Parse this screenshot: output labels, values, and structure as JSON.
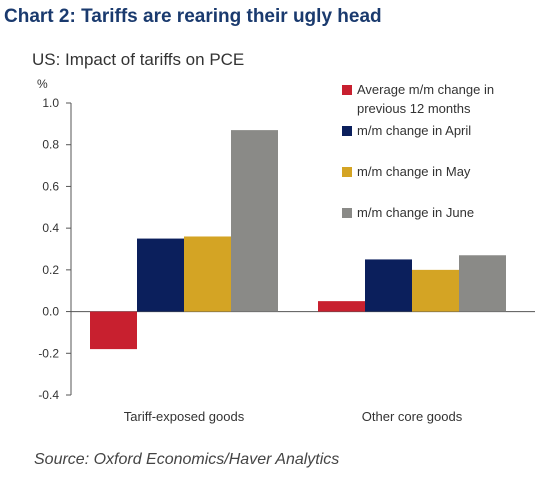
{
  "heading": "Chart 2: Tariffs are rearing their ugly head",
  "source": "Source: Oxford Economics/Haver Analytics",
  "chart_data": {
    "type": "bar",
    "title": "US: Impact of tariffs on PCE",
    "ylabel": "%",
    "xlabel": "",
    "ylim": [
      -0.4,
      1.0
    ],
    "yticks": [
      -0.4,
      -0.2,
      0.0,
      0.2,
      0.4,
      0.6,
      0.8,
      1.0
    ],
    "ytick_labels": [
      "-0.4",
      "-0.2",
      "0.0",
      "0.2",
      "0.4",
      "0.6",
      "0.8",
      "1.0"
    ],
    "categories": [
      "Tariff-exposed goods",
      "Other core goods"
    ],
    "series": [
      {
        "name": "Average m/m change in previous 12 months",
        "legend_lines": [
          "Average m/m change in",
          "previous 12 months"
        ],
        "color": "#c8202f",
        "values": [
          -0.18,
          0.05
        ]
      },
      {
        "name": "m/m change in April",
        "legend_lines": [
          "m/m change in April"
        ],
        "color": "#0b1f5c",
        "values": [
          0.35,
          0.25
        ]
      },
      {
        "name": "m/m change in May",
        "legend_lines": [
          "m/m change in May"
        ],
        "color": "#d4a424",
        "values": [
          0.36,
          0.2
        ]
      },
      {
        "name": "m/m change in June",
        "legend_lines": [
          "m/m change in June"
        ],
        "color": "#8a8a87",
        "values": [
          0.87,
          0.27
        ]
      }
    ],
    "grid": false,
    "legend_position": "top-right"
  }
}
